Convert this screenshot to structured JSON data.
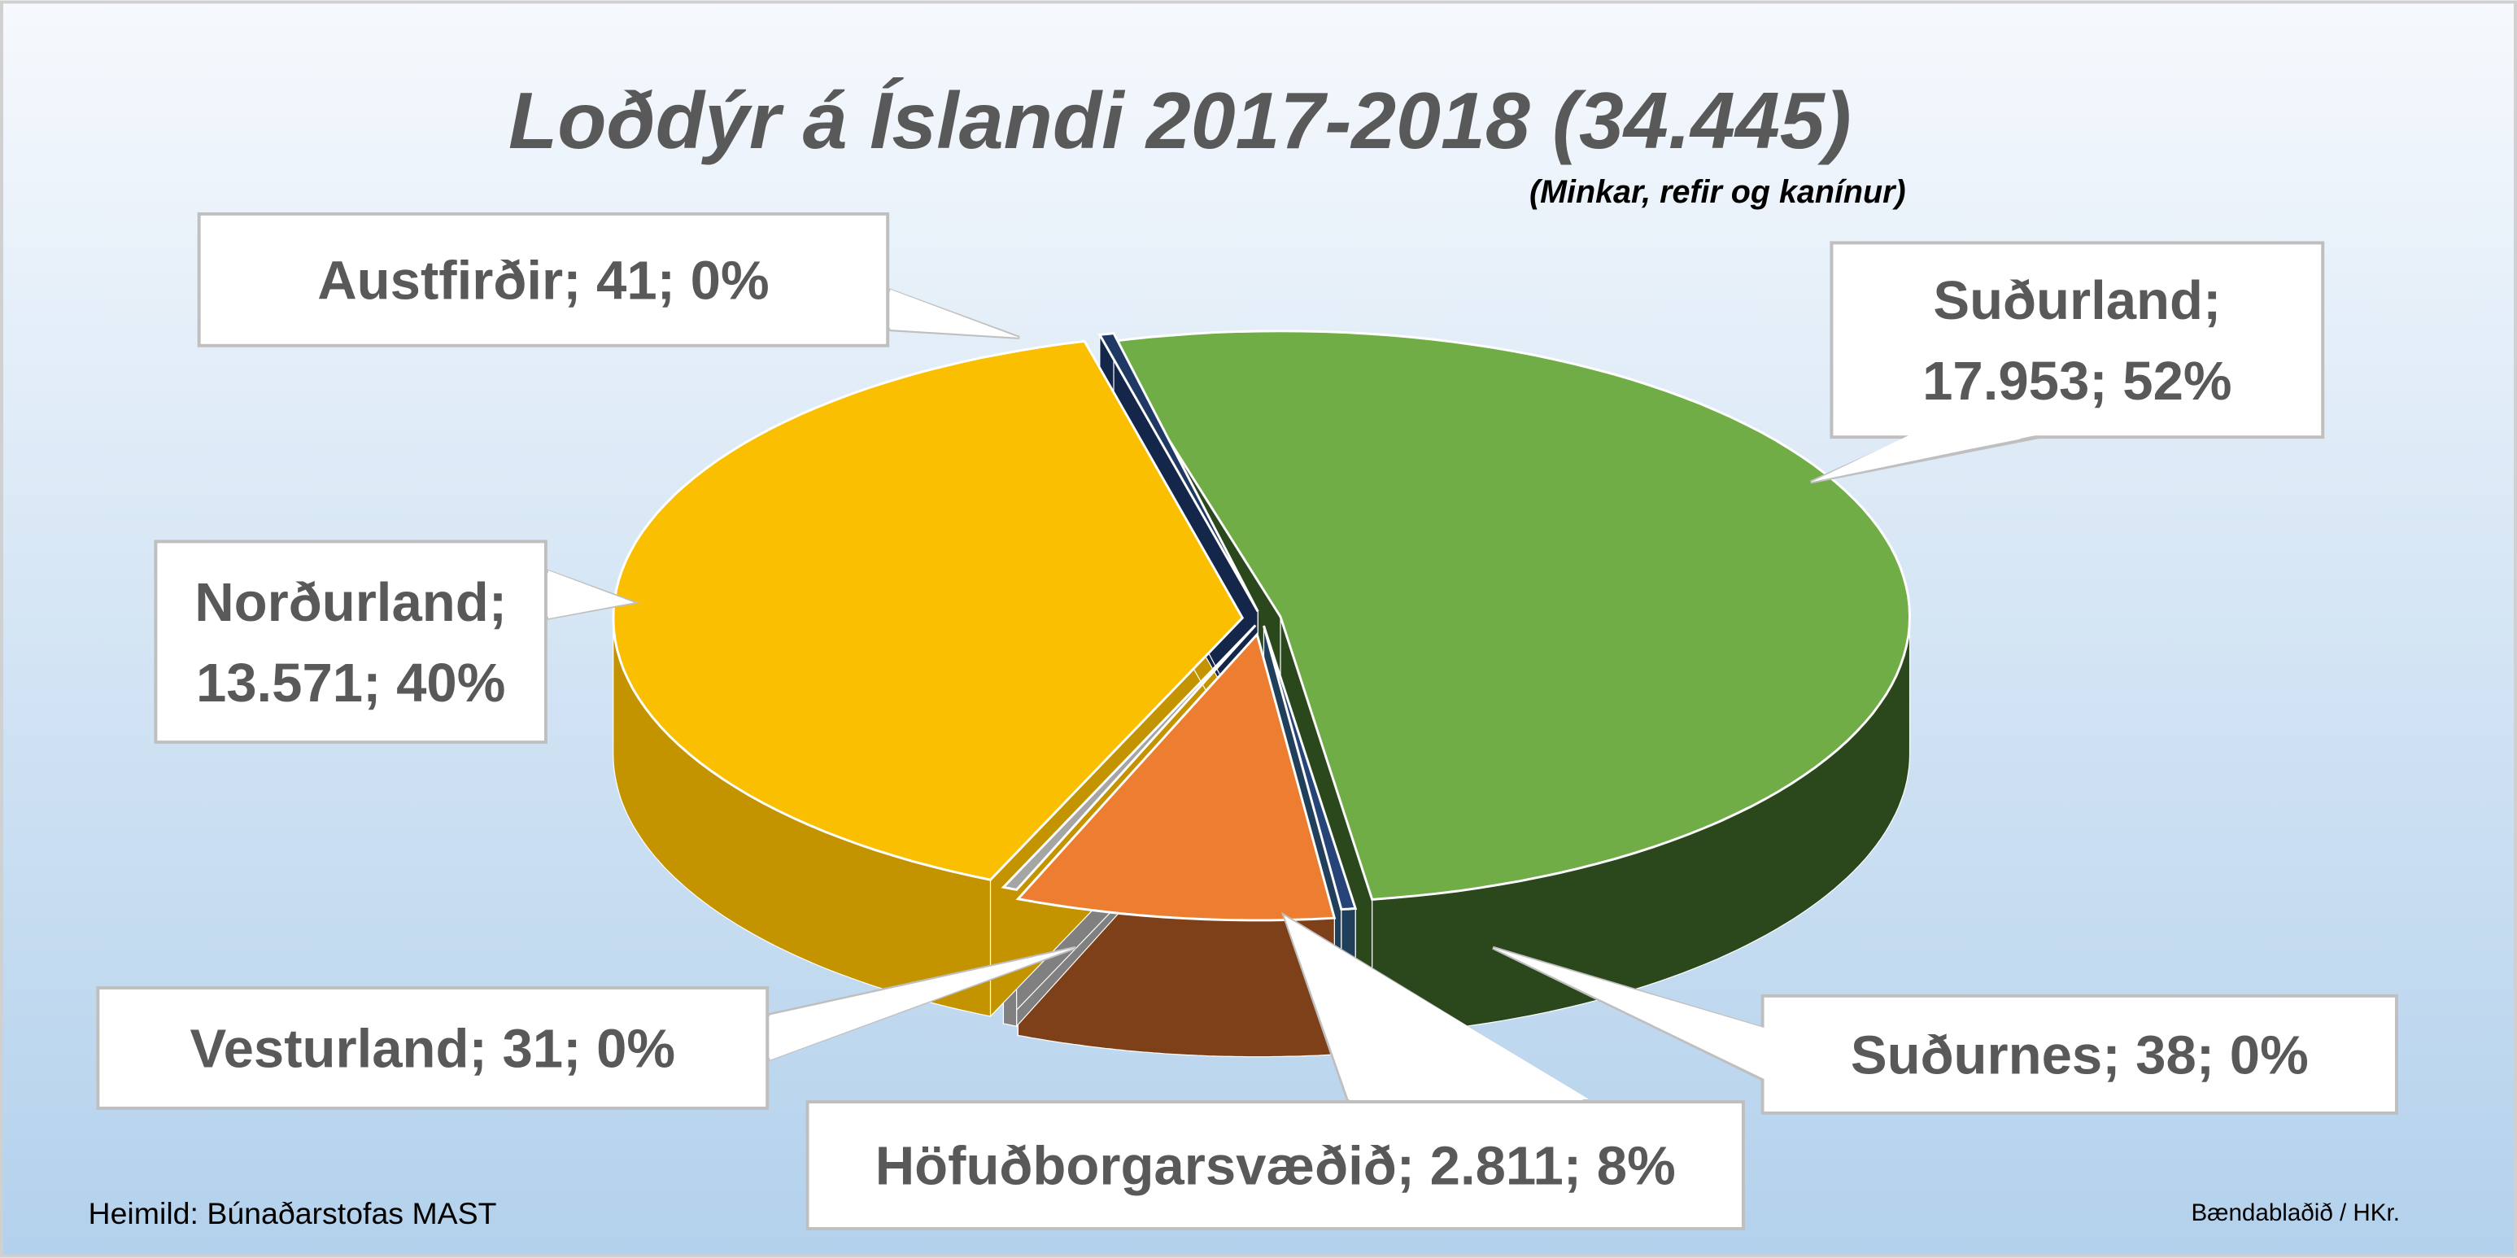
{
  "chart_data": {
    "type": "pie",
    "title": "Loðdýr á Íslandi 2017-2018 (34.445)",
    "subtitle": "(Minkar, refir og kanínur)",
    "total": 34445,
    "series": [
      {
        "name": "Suðurland",
        "value": 17953,
        "percent": 52,
        "color": "#70AD47",
        "side": "#2B471C",
        "label_lines": [
          "Suðurland;",
          "17.953; 52%"
        ]
      },
      {
        "name": "Suðurnes",
        "value": 38,
        "percent": 0,
        "color": "#264478",
        "side": "#203F5A",
        "label_lines": [
          "Suðurnes; 38; 0%"
        ]
      },
      {
        "name": "Höfuðborgarsvæðið",
        "value": 2811,
        "percent": 8,
        "color": "#ED7D31",
        "side": "#7E4019",
        "label_lines": [
          "Höfuðborgarsvæðið; 2.811; 8%"
        ]
      },
      {
        "name": "Vesturland",
        "value": 31,
        "percent": 0,
        "color": "#A5A5A5",
        "side": "#808080",
        "label_lines": [
          "Vesturland; 31; 0%"
        ]
      },
      {
        "name": "Norðurland",
        "value": 13571,
        "percent": 40,
        "color": "#FABF00",
        "side": "#C39300",
        "label_lines": [
          "Norðurland;",
          "13.571; 40%"
        ]
      },
      {
        "name": "Austfirðir",
        "value": 41,
        "percent": 0,
        "color": "#1F3864",
        "side": "#14264A",
        "label_lines": [
          "Austfirðir; 41; 0%"
        ]
      }
    ],
    "legend": "none"
  },
  "footer": {
    "source": "Heimild: Búnaðarstofas MAST",
    "credit": "Bændablaðið / HKr."
  }
}
